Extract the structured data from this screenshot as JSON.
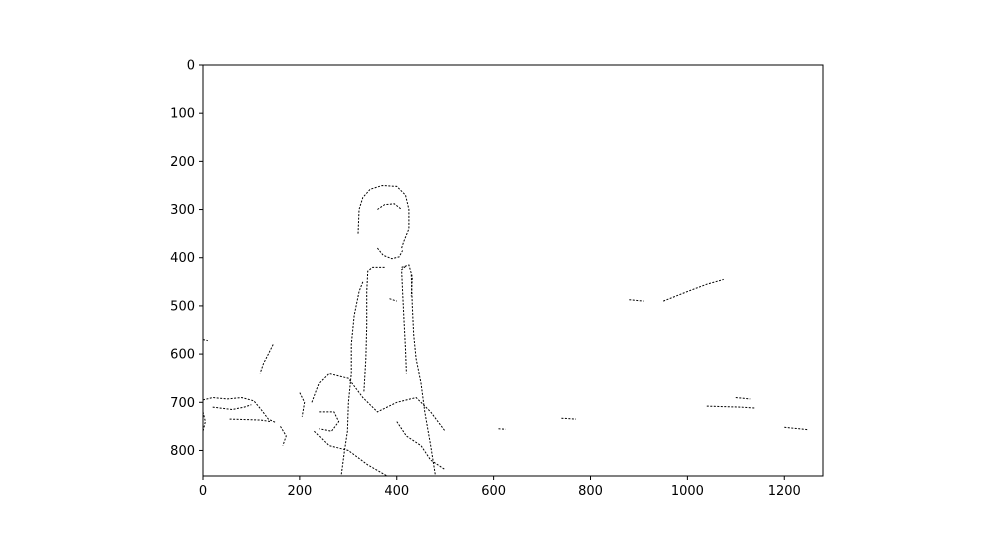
{
  "chart_data": {
    "type": "image",
    "description_free": true,
    "xlim": [
      0,
      1280
    ],
    "ylim": [
      853,
      0
    ],
    "x_ticks": [
      0,
      200,
      400,
      600,
      800,
      1000,
      1200
    ],
    "y_ticks": [
      0,
      100,
      200,
      300,
      400,
      500,
      600,
      700,
      800
    ],
    "x_tick_labels": [
      "0",
      "200",
      "400",
      "600",
      "800",
      "1000",
      "1200"
    ],
    "y_tick_labels": [
      "0",
      "100",
      "200",
      "300",
      "400",
      "500",
      "600",
      "700",
      "800"
    ],
    "grid": false,
    "colors": {
      "background": "#ffffff",
      "edge": "#000000",
      "axes": "#000000"
    },
    "edges": [
      [
        [
          320,
          350
        ],
        [
          322,
          300
        ],
        [
          330,
          275
        ],
        [
          345,
          258
        ],
        [
          370,
          250
        ],
        [
          400,
          252
        ],
        [
          418,
          270
        ],
        [
          425,
          300
        ],
        [
          425,
          340
        ],
        [
          415,
          365
        ],
        [
          410,
          380
        ]
      ],
      [
        [
          330,
          450
        ],
        [
          322,
          470
        ],
        [
          312,
          520
        ],
        [
          306,
          580
        ],
        [
          306,
          640
        ],
        [
          300,
          700
        ],
        [
          298,
          760
        ],
        [
          292,
          800
        ],
        [
          285,
          853
        ]
      ],
      [
        [
          375,
          420
        ],
        [
          350,
          420
        ],
        [
          340,
          428
        ],
        [
          338,
          470
        ],
        [
          338,
          540
        ],
        [
          336,
          610
        ],
        [
          332,
          680
        ]
      ],
      [
        [
          418,
          418
        ],
        [
          410,
          425
        ],
        [
          412,
          470
        ],
        [
          415,
          530
        ],
        [
          418,
          590
        ],
        [
          420,
          640
        ]
      ],
      [
        [
          430,
          435
        ],
        [
          432,
          500
        ],
        [
          435,
          560
        ],
        [
          440,
          610
        ],
        [
          450,
          660
        ],
        [
          458,
          720
        ],
        [
          470,
          790
        ],
        [
          480,
          853
        ]
      ],
      [
        [
          225,
          700
        ],
        [
          240,
          660
        ],
        [
          260,
          640
        ],
        [
          300,
          650
        ],
        [
          330,
          690
        ],
        [
          360,
          720
        ],
        [
          400,
          700
        ],
        [
          440,
          690
        ],
        [
          470,
          720
        ],
        [
          500,
          760
        ]
      ],
      [
        [
          240,
          720
        ],
        [
          270,
          720
        ],
        [
          280,
          740
        ],
        [
          265,
          760
        ],
        [
          240,
          755
        ]
      ],
      [
        [
          230,
          760
        ],
        [
          260,
          790
        ],
        [
          300,
          800
        ],
        [
          340,
          830
        ],
        [
          380,
          853
        ]
      ],
      [
        [
          400,
          740
        ],
        [
          420,
          770
        ],
        [
          450,
          790
        ],
        [
          470,
          820
        ],
        [
          500,
          840
        ]
      ],
      [
        [
          950,
          490
        ],
        [
          1000,
          470
        ],
        [
          1040,
          455
        ],
        [
          1075,
          445
        ]
      ],
      [
        [
          880,
          487
        ],
        [
          910,
          490
        ]
      ],
      [
        [
          1040,
          708
        ],
        [
          1110,
          710
        ],
        [
          1140,
          712
        ]
      ],
      [
        [
          1100,
          690
        ],
        [
          1130,
          693
        ]
      ],
      [
        [
          1200,
          752
        ],
        [
          1250,
          757
        ]
      ],
      [
        [
          740,
          733
        ],
        [
          770,
          735
        ]
      ],
      [
        [
          610,
          755
        ],
        [
          625,
          756
        ]
      ],
      [
        [
          0,
          695
        ],
        [
          20,
          690
        ],
        [
          50,
          693
        ],
        [
          80,
          690
        ],
        [
          105,
          697
        ],
        [
          120,
          715
        ],
        [
          135,
          735
        ],
        [
          150,
          742
        ]
      ],
      [
        [
          20,
          710
        ],
        [
          60,
          715
        ],
        [
          85,
          710
        ],
        [
          100,
          705
        ]
      ],
      [
        [
          55,
          735
        ],
        [
          90,
          736
        ],
        [
          120,
          737
        ],
        [
          140,
          740
        ]
      ],
      [
        [
          0,
          720
        ],
        [
          5,
          740
        ],
        [
          0,
          760
        ]
      ],
      [
        [
          145,
          580
        ],
        [
          135,
          600
        ],
        [
          125,
          620
        ],
        [
          118,
          640
        ]
      ],
      [
        [
          160,
          750
        ],
        [
          172,
          770
        ],
        [
          165,
          790
        ]
      ],
      [
        [
          0,
          570
        ],
        [
          10,
          572
        ]
      ],
      [
        [
          200,
          680
        ],
        [
          210,
          700
        ],
        [
          205,
          730
        ]
      ],
      [
        [
          360,
          380
        ],
        [
          372,
          395
        ],
        [
          390,
          402
        ],
        [
          405,
          398
        ],
        [
          412,
          385
        ]
      ],
      [
        [
          360,
          300
        ],
        [
          375,
          290
        ],
        [
          395,
          288
        ],
        [
          410,
          300
        ]
      ],
      [
        [
          385,
          485
        ],
        [
          400,
          490
        ]
      ],
      [
        [
          410,
          420
        ],
        [
          425,
          415
        ],
        [
          432,
          440
        ],
        [
          430,
          480
        ]
      ]
    ]
  }
}
